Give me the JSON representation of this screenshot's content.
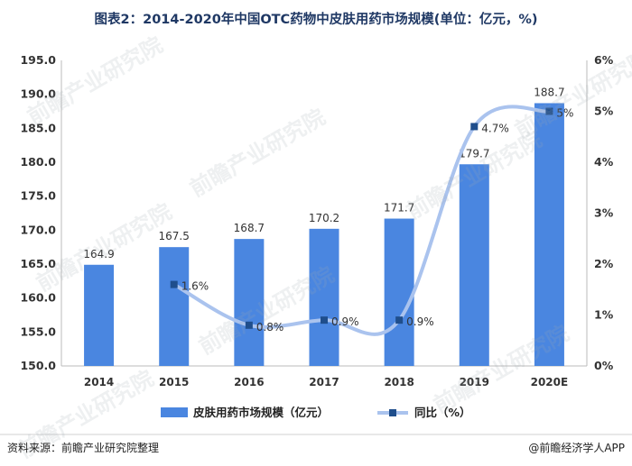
{
  "title": "图表2：2014-2020年中国OTC药物中皮肤用药市场规模(单位：亿元，%)",
  "source": "资料来源：前瞻产业研究院整理",
  "brand": "@前瞻经济学人APP",
  "watermark_text": "前瞻产业研究院",
  "colors": {
    "bar": "#4a86e0",
    "line": "#aac3ee",
    "marker": "#1f4e8c",
    "axis_text": "#333333",
    "grid": "#e6e6e6"
  },
  "chart_data": {
    "type": "bar",
    "categories": [
      "2014",
      "2015",
      "2016",
      "2017",
      "2018",
      "2019",
      "2020E"
    ],
    "series": [
      {
        "name": "皮肤用药市场规模（亿元）",
        "type": "bar",
        "axis": "left",
        "values": [
          164.9,
          167.5,
          168.7,
          170.2,
          171.7,
          179.7,
          188.7
        ],
        "labels": [
          "164.9",
          "167.5",
          "168.7",
          "170.2",
          "171.7",
          "179.7",
          "188.7"
        ]
      },
      {
        "name": "同比（%）",
        "type": "line",
        "axis": "right",
        "values": [
          null,
          1.6,
          0.8,
          0.9,
          0.9,
          4.7,
          5.0
        ],
        "labels": [
          "",
          "1.6%",
          "0.8%",
          "0.9%",
          "0.9%",
          "4.7%",
          "5%"
        ]
      }
    ],
    "y_left": {
      "min": 150,
      "max": 195,
      "step": 5,
      "ticks": [
        "150.0",
        "155.0",
        "160.0",
        "165.0",
        "170.0",
        "175.0",
        "180.0",
        "185.0",
        "190.0",
        "195.0"
      ]
    },
    "y_right": {
      "min": 0,
      "max": 6,
      "step": 1,
      "ticks": [
        "0%",
        "1%",
        "2%",
        "3%",
        "4%",
        "5%",
        "6%"
      ]
    },
    "grid": false,
    "legend_position": "bottom"
  }
}
